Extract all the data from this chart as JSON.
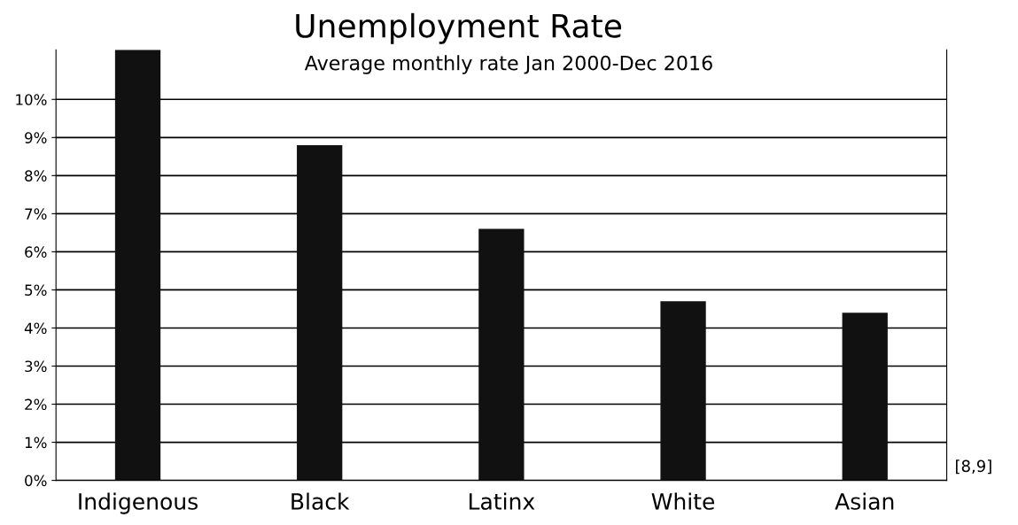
{
  "chart_data": {
    "type": "bar",
    "title": "Unemployment Rate",
    "subtitle": "Average monthly rate Jan 2000-Dec 2016",
    "categories": [
      "Indigenous",
      "Black",
      "Latinx",
      "White",
      "Asian"
    ],
    "values": [
      11.3,
      8.8,
      6.6,
      4.7,
      4.4
    ],
    "color": "#111111",
    "ylim": [
      0,
      11.3
    ],
    "yticks": [
      {
        "value": 0,
        "label": "0%"
      },
      {
        "value": 1,
        "label": "1%"
      },
      {
        "value": 2,
        "label": "2%"
      },
      {
        "value": 3,
        "label": "3%"
      },
      {
        "value": 4,
        "label": "4%"
      },
      {
        "value": 5,
        "label": "5%"
      },
      {
        "value": 6,
        "label": "6%"
      },
      {
        "value": 7,
        "label": "7%"
      },
      {
        "value": 8,
        "label": "8%"
      },
      {
        "value": 9,
        "label": "9%"
      },
      {
        "value": 10,
        "label": "10%"
      }
    ],
    "grid": "y",
    "annotations": [
      "[8,9]"
    ]
  }
}
